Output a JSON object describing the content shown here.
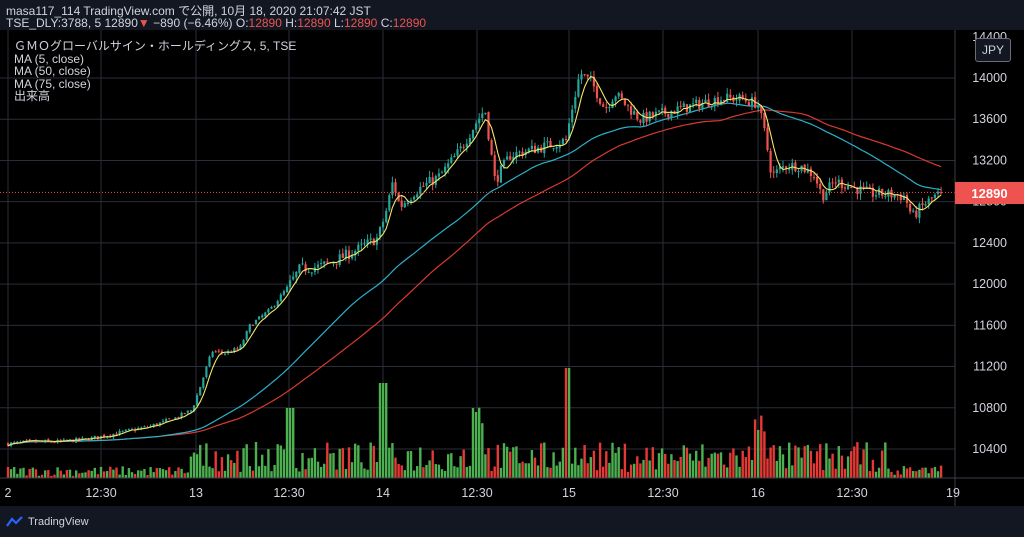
{
  "header": {
    "line1": "masa117_114 TradingView.com で公開, 10月 18, 2020 21:07:42 JST",
    "line2_prefix": "TSE_DLY:3788, 5 12890",
    "line2_change_arrow": "▼",
    "line2_change": "−890 (−6.46%)",
    "o_label": "O:",
    "o_value": "12890",
    "h_label": "H:",
    "h_value": "12890",
    "l_label": "L:",
    "l_value": "12890",
    "c_label": "C:",
    "c_value": "12890"
  },
  "legend": {
    "title": "ＧＭＯグローバルサイン・ホールディングス, 5, TSE",
    "ma5": "MA (5, close)",
    "ma50": "MA (50, close)",
    "ma75": "MA (75, close)",
    "volume": "出来高"
  },
  "currency": "JPY",
  "last_price_label": "12890",
  "footer": {
    "brand": "TradingView"
  },
  "colors": {
    "up": "#26a69a",
    "down": "#ef5350",
    "ma5": "#f5e66b",
    "ma50": "#2ab0c9",
    "ma75": "#d63a2e",
    "vol_up": "#4caf50",
    "vol_down": "#e53935",
    "background": "#000000",
    "grid": "#2a2e39"
  },
  "chart_data": {
    "type": "candlestick",
    "interval": "5 min",
    "y_ticks": [
      10400,
      10800,
      11200,
      11600,
      12000,
      12400,
      12800,
      13200,
      13600,
      14000
    ],
    "x_ticks": [
      "2",
      "12:30",
      "13",
      "12:30",
      "14",
      "12:30",
      "15",
      "12:30",
      "16",
      "12:30",
      "19"
    ],
    "ylim": [
      10150,
      14250
    ],
    "last_price": 12890,
    "close_approx": [
      {
        "day": "12",
        "open": 10480,
        "close": 10700,
        "low": 10400,
        "high": 10760
      },
      {
        "day": "13",
        "open": 10700,
        "close": 12450,
        "low": 10680,
        "high": 12480
      },
      {
        "day": "14",
        "open": 12450,
        "close": 13400,
        "low": 12400,
        "high": 13800
      },
      {
        "day": "15",
        "open": 13500,
        "close": 13800,
        "low": 13400,
        "high": 14100
      },
      {
        "day": "16",
        "open": 13800,
        "close": 12890,
        "low": 12600,
        "high": 13900
      }
    ],
    "series": [
      {
        "name": "MA (5, close)"
      },
      {
        "name": "MA (50, close)"
      },
      {
        "name": "MA (75, close)"
      },
      {
        "name": "出来高"
      }
    ]
  }
}
